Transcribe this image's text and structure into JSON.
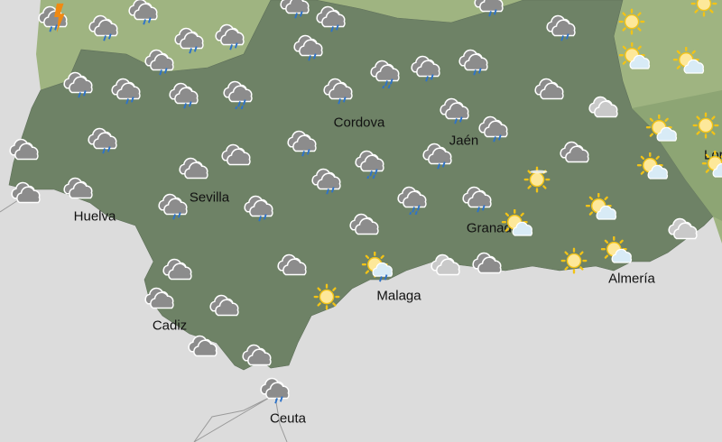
{
  "map": {
    "colors": {
      "sea": "#dcdcdc",
      "region_land": "#6e8266",
      "neighbour_land": "#9fb481",
      "cloud_dark": "#8c8c8c",
      "cloud_light": "#c9c9c9",
      "rain": "#2e73c9",
      "sun_core": "#fde89a",
      "sun_rays": "#f2c316",
      "lightning": "#f08a12"
    },
    "cities": [
      {
        "name": "Huelva"
      },
      {
        "name": "Sevilla"
      },
      {
        "name": "Cordova"
      },
      {
        "name": "Jaén"
      },
      {
        "name": "Granada"
      },
      {
        "name": "Malaga"
      },
      {
        "name": "Cadiz"
      },
      {
        "name": "Ceuta"
      },
      {
        "name": "Almería"
      },
      {
        "name": "Lorca"
      }
    ],
    "icons": [
      "storm",
      "rain",
      "rain",
      "rain",
      "rain",
      "rain",
      "rain",
      "rain",
      "rain",
      "rain",
      "rain",
      "sun",
      "sun",
      "sun-cloud",
      "sun-cloud",
      "heavy-rain",
      "rain",
      "rain",
      "rain",
      "rain",
      "rain",
      "heavy-rain",
      "rain",
      "cloud",
      "cloud-light",
      "rain",
      "rain",
      "sun-cloud",
      "sun",
      "cloud",
      "rain",
      "rain",
      "heavy-rain",
      "rain",
      "cloud",
      "sun-cloud",
      "sun-cloud",
      "cloud",
      "cloud",
      "rain",
      "cloud",
      "cloud",
      "rain",
      "rain",
      "heavy-rain",
      "rain",
      "sun-haze",
      "sun-cloud",
      "sun-cloud",
      "cloud",
      "cloud-light",
      "cloud",
      "sun-rain",
      "cloud-light",
      "cloud",
      "sun",
      "sun-cloud",
      "cloud",
      "cloud",
      "cloud",
      "sun",
      "cloud",
      "cloud",
      "rain"
    ]
  }
}
